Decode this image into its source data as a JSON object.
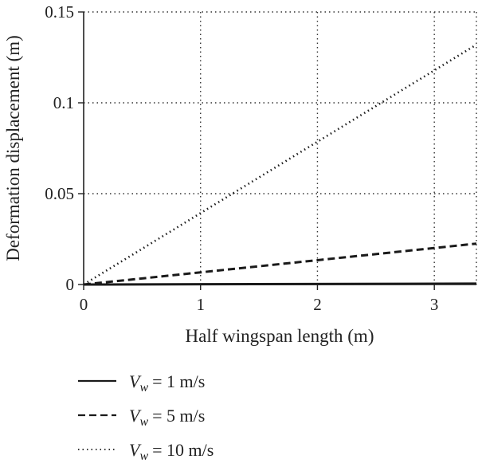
{
  "chart_data": {
    "type": "line",
    "title": "",
    "xlabel": "Half wingspan length (m)",
    "ylabel": "Deformation displacement (m)",
    "xlim": [
      0,
      3.36
    ],
    "ylim": [
      0,
      0.15
    ],
    "xticks": [
      0,
      1,
      2,
      3
    ],
    "xtick_labels": [
      "0",
      "1",
      "2",
      "3"
    ],
    "yticks": [
      0,
      0.05,
      0.1,
      0.15
    ],
    "ytick_labels": [
      "0",
      "0.05",
      "0.1",
      "0.15"
    ],
    "grid": true,
    "legend_position": "bottom",
    "series": [
      {
        "label_sub": "w",
        "label_value": "= 1 m/s",
        "style": "solid",
        "x": [
          0,
          3.36
        ],
        "y": [
          0,
          0.0005
        ]
      },
      {
        "label_sub": "w",
        "label_value": "= 5 m/s",
        "style": "dashed",
        "x": [
          0,
          3.36
        ],
        "y": [
          0,
          0.0225
        ]
      },
      {
        "label_sub": "w",
        "label_value": "= 10 m/s",
        "style": "dotted",
        "x": [
          0,
          3.36
        ],
        "y": [
          0,
          0.132
        ]
      }
    ],
    "legend_symbol": "V"
  }
}
